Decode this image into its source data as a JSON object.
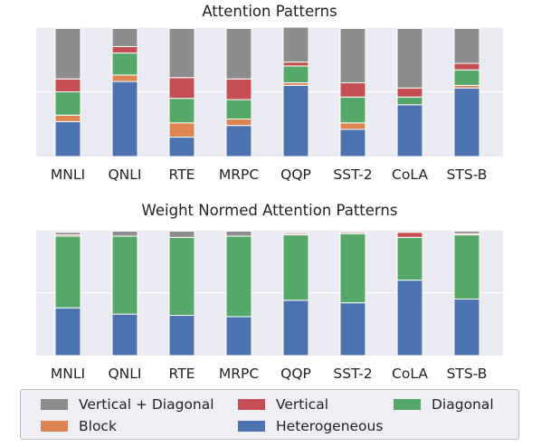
{
  "chart_data": [
    {
      "type": "bar",
      "stacked": true,
      "title": "Attention Patterns",
      "categories": [
        "MNLI",
        "QNLI",
        "RTE",
        "MRPC",
        "QQP",
        "SST-2",
        "CoLA",
        "STS-B"
      ],
      "ylim": [
        0,
        1
      ],
      "grid": true,
      "series": [
        {
          "name": "Heterogeneous",
          "color": "#4c72b0",
          "values": [
            0.27,
            0.58,
            0.15,
            0.24,
            0.55,
            0.21,
            0.4,
            0.53
          ]
        },
        {
          "name": "Block",
          "color": "#dd8452",
          "values": [
            0.05,
            0.05,
            0.11,
            0.05,
            0.02,
            0.05,
            0.0,
            0.02
          ]
        },
        {
          "name": "Diagonal",
          "color": "#55a868",
          "values": [
            0.18,
            0.17,
            0.19,
            0.15,
            0.13,
            0.2,
            0.06,
            0.12
          ]
        },
        {
          "name": "Vertical",
          "color": "#c44e52",
          "values": [
            0.1,
            0.05,
            0.16,
            0.16,
            0.03,
            0.11,
            0.07,
            0.05
          ]
        },
        {
          "name": "Vertical + Diagonal",
          "color": "#8c8c8c",
          "values": [
            0.39,
            0.14,
            0.38,
            0.39,
            0.27,
            0.42,
            0.46,
            0.27
          ]
        }
      ]
    },
    {
      "type": "bar",
      "stacked": true,
      "title": "Weight Normed Attention Patterns",
      "categories": [
        "MNLI",
        "QNLI",
        "RTE",
        "MRPC",
        "QQP",
        "SST-2",
        "CoLA",
        "STS-B"
      ],
      "ylim": [
        0,
        1
      ],
      "grid": true,
      "series": [
        {
          "name": "Heterogeneous",
          "color": "#4c72b0",
          "values": [
            0.38,
            0.33,
            0.32,
            0.31,
            0.44,
            0.42,
            0.6,
            0.45
          ]
        },
        {
          "name": "Block",
          "color": "#dd8452",
          "values": [
            0.0,
            0.0,
            0.0,
            0.0,
            0.0,
            0.0,
            0.0,
            0.0
          ]
        },
        {
          "name": "Diagonal",
          "color": "#55a868",
          "values": [
            0.57,
            0.62,
            0.62,
            0.64,
            0.52,
            0.55,
            0.34,
            0.51
          ]
        },
        {
          "name": "Vertical",
          "color": "#c44e52",
          "values": [
            0.01,
            0.0,
            0.0,
            0.0,
            0.01,
            0.01,
            0.04,
            0.01
          ]
        },
        {
          "name": "Vertical + Diagonal",
          "color": "#8c8c8c",
          "values": [
            0.02,
            0.04,
            0.05,
            0.04,
            0.01,
            0.01,
            0.0,
            0.02
          ]
        }
      ]
    }
  ],
  "legend": {
    "items": [
      {
        "label": "Vertical + Diagonal",
        "color": "#8c8c8c"
      },
      {
        "label": "Vertical",
        "color": "#c44e52"
      },
      {
        "label": "Diagonal",
        "color": "#55a868"
      },
      {
        "label": "Block",
        "color": "#dd8452"
      },
      {
        "label": "Heterogeneous",
        "color": "#4c72b0"
      }
    ]
  },
  "colors": {
    "panel_background": "#eaeaf2",
    "grid": "#ffffff"
  }
}
